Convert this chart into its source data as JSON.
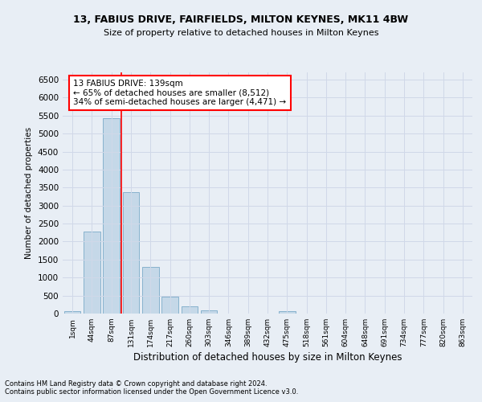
{
  "title1": "13, FABIUS DRIVE, FAIRFIELDS, MILTON KEYNES, MK11 4BW",
  "title2": "Size of property relative to detached houses in Milton Keynes",
  "xlabel": "Distribution of detached houses by size in Milton Keynes",
  "ylabel": "Number of detached properties",
  "footnote1": "Contains HM Land Registry data © Crown copyright and database right 2024.",
  "footnote2": "Contains public sector information licensed under the Open Government Licence v3.0.",
  "bar_labels": [
    "1sqm",
    "44sqm",
    "87sqm",
    "131sqm",
    "174sqm",
    "217sqm",
    "260sqm",
    "303sqm",
    "346sqm",
    "389sqm",
    "432sqm",
    "475sqm",
    "518sqm",
    "561sqm",
    "604sqm",
    "648sqm",
    "691sqm",
    "734sqm",
    "777sqm",
    "820sqm",
    "863sqm"
  ],
  "bar_values": [
    70,
    2270,
    5420,
    3380,
    1300,
    475,
    210,
    95,
    0,
    0,
    0,
    75,
    0,
    0,
    0,
    0,
    0,
    0,
    0,
    0,
    0
  ],
  "bar_color": "#c5d8e8",
  "bar_edge_color": "#7aaac8",
  "grid_color": "#d0d8e8",
  "annotation_text": "13 FABIUS DRIVE: 139sqm\n← 65% of detached houses are smaller (8,512)\n34% of semi-detached houses are larger (4,471) →",
  "annotation_box_color": "white",
  "annotation_box_edgecolor": "red",
  "vline_color": "red",
  "ylim": [
    0,
    6700
  ],
  "yticks": [
    0,
    500,
    1000,
    1500,
    2000,
    2500,
    3000,
    3500,
    4000,
    4500,
    5000,
    5500,
    6000,
    6500
  ],
  "background_color": "#e8eef5"
}
